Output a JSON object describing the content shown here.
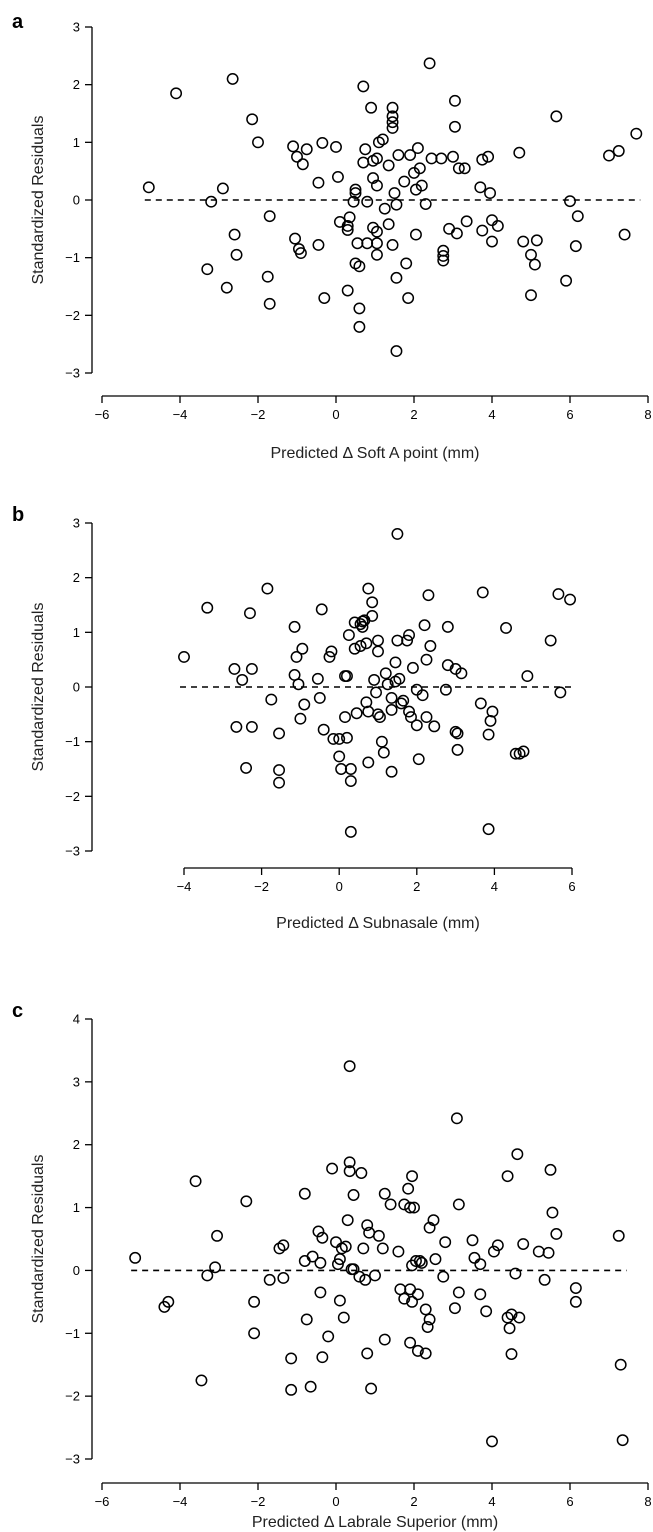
{
  "chart_data": [
    {
      "panel": "a",
      "type": "scatter",
      "xlabel": "Predicted Δ Soft A point (mm)",
      "ylabel": "Standardized Residuals",
      "xlim": [
        -6,
        8
      ],
      "ylim": [
        -3,
        3
      ],
      "xticks": [
        "−6",
        "−4",
        "−2",
        "0",
        "2",
        "4",
        "6",
        "8"
      ],
      "yticks": [
        "−3",
        "−2",
        "−1",
        "0",
        "1",
        "2",
        "3"
      ],
      "reference_y": 0,
      "points": [
        [
          -4.8,
          0.22
        ],
        [
          -4.1,
          1.85
        ],
        [
          -3.2,
          -0.03
        ],
        [
          -3.3,
          -1.2
        ],
        [
          -2.9,
          0.2
        ],
        [
          -2.8,
          -1.52
        ],
        [
          -2.65,
          2.1
        ],
        [
          -2.6,
          -0.6
        ],
        [
          -2.55,
          -0.95
        ],
        [
          -2.15,
          1.4
        ],
        [
          -2.0,
          1.0
        ],
        [
          -1.7,
          -0.28
        ],
        [
          -1.75,
          -1.33
        ],
        [
          -1.7,
          -1.8
        ],
        [
          -1.1,
          0.93
        ],
        [
          -1.0,
          0.75
        ],
        [
          -0.85,
          0.62
        ],
        [
          -0.75,
          0.88
        ],
        [
          -1.05,
          -0.67
        ],
        [
          -0.95,
          -0.85
        ],
        [
          -0.9,
          -0.92
        ],
        [
          -0.35,
          0.99
        ],
        [
          -0.45,
          0.3
        ],
        [
          -0.45,
          -0.78
        ],
        [
          -0.3,
          -1.7
        ],
        [
          0.05,
          0.4
        ],
        [
          0.0,
          0.92
        ],
        [
          0.1,
          -0.38
        ],
        [
          0.3,
          -0.45
        ],
        [
          0.3,
          -0.52
        ],
        [
          0.35,
          -0.3
        ],
        [
          0.3,
          -1.57
        ],
        [
          0.45,
          -0.03
        ],
        [
          0.5,
          0.12
        ],
        [
          0.5,
          0.18
        ],
        [
          0.55,
          -0.75
        ],
        [
          0.5,
          -1.1
        ],
        [
          0.6,
          -1.15
        ],
        [
          0.6,
          -1.88
        ],
        [
          0.6,
          -2.2
        ],
        [
          0.7,
          1.97
        ],
        [
          0.75,
          0.88
        ],
        [
          0.7,
          0.65
        ],
        [
          0.8,
          -0.03
        ],
        [
          0.8,
          -0.75
        ],
        [
          0.9,
          1.6
        ],
        [
          0.95,
          0.38
        ],
        [
          0.95,
          0.68
        ],
        [
          0.95,
          -0.48
        ],
        [
          1.05,
          0.72
        ],
        [
          1.05,
          0.25
        ],
        [
          1.05,
          -0.55
        ],
        [
          1.05,
          -0.75
        ],
        [
          1.05,
          -0.95
        ],
        [
          1.1,
          1.0
        ],
        [
          1.2,
          1.05
        ],
        [
          1.25,
          -0.15
        ],
        [
          1.35,
          0.6
        ],
        [
          1.35,
          -0.42
        ],
        [
          1.45,
          1.6
        ],
        [
          1.45,
          1.45
        ],
        [
          1.45,
          1.35
        ],
        [
          1.45,
          1.25
        ],
        [
          1.5,
          0.12
        ],
        [
          1.45,
          -0.78
        ],
        [
          1.55,
          -0.08
        ],
        [
          1.6,
          0.78
        ],
        [
          1.55,
          -1.35
        ],
        [
          1.55,
          -2.62
        ],
        [
          1.75,
          0.32
        ],
        [
          1.8,
          -1.1
        ],
        [
          1.85,
          -1.7
        ],
        [
          1.9,
          0.78
        ],
        [
          2.0,
          0.47
        ],
        [
          2.05,
          0.18
        ],
        [
          2.05,
          -0.6
        ],
        [
          2.1,
          0.9
        ],
        [
          2.15,
          0.55
        ],
        [
          2.2,
          0.25
        ],
        [
          2.3,
          -0.07
        ],
        [
          2.4,
          2.37
        ],
        [
          2.45,
          0.72
        ],
        [
          2.7,
          0.72
        ],
        [
          2.75,
          -0.88
        ],
        [
          2.75,
          -0.97
        ],
        [
          2.75,
          -1.05
        ],
        [
          2.9,
          -0.5
        ],
        [
          3.0,
          0.75
        ],
        [
          3.05,
          1.27
        ],
        [
          3.05,
          1.72
        ],
        [
          3.1,
          -0.58
        ],
        [
          3.15,
          0.55
        ],
        [
          3.35,
          -0.37
        ],
        [
          3.3,
          0.55
        ],
        [
          3.7,
          0.22
        ],
        [
          3.75,
          0.7
        ],
        [
          3.75,
          -0.53
        ],
        [
          3.9,
          0.75
        ],
        [
          3.95,
          0.12
        ],
        [
          4.0,
          -0.35
        ],
        [
          4.0,
          -0.72
        ],
        [
          4.15,
          -0.45
        ],
        [
          4.7,
          0.82
        ],
        [
          4.8,
          -0.72
        ],
        [
          5.0,
          -0.95
        ],
        [
          5.0,
          -1.65
        ],
        [
          5.1,
          -1.12
        ],
        [
          5.15,
          -0.7
        ],
        [
          5.65,
          1.45
        ],
        [
          5.9,
          -1.4
        ],
        [
          6.0,
          -0.02
        ],
        [
          6.15,
          -0.8
        ],
        [
          6.2,
          -0.28
        ],
        [
          7.0,
          0.77
        ],
        [
          7.25,
          0.85
        ],
        [
          7.4,
          -0.6
        ],
        [
          7.7,
          1.15
        ]
      ]
    },
    {
      "panel": "b",
      "type": "scatter",
      "xlabel": "Predicted Δ Subnasale (mm)",
      "ylabel": "Standardized Residuals",
      "xlim": [
        -4,
        6
      ],
      "ylim": [
        -3,
        3
      ],
      "xticks": [
        "−4",
        "−2",
        "0",
        "2",
        "4",
        "6"
      ],
      "yticks": [
        "−3",
        "−2",
        "−1",
        "0",
        "1",
        "2",
        "3"
      ],
      "reference_y": 0,
      "points": [
        [
          -4.0,
          0.55
        ],
        [
          -3.4,
          1.45
        ],
        [
          -2.7,
          0.33
        ],
        [
          -2.65,
          -0.73
        ],
        [
          -2.5,
          0.13
        ],
        [
          -2.4,
          -1.48
        ],
        [
          -2.3,
          1.35
        ],
        [
          -2.25,
          0.33
        ],
        [
          -2.25,
          -0.73
        ],
        [
          -1.85,
          1.8
        ],
        [
          -1.75,
          -0.23
        ],
        [
          -1.55,
          -0.85
        ],
        [
          -1.55,
          -1.52
        ],
        [
          -1.55,
          -1.75
        ],
        [
          -1.15,
          1.1
        ],
        [
          -1.15,
          0.22
        ],
        [
          -1.1,
          0.55
        ],
        [
          -1.05,
          0.05
        ],
        [
          -0.95,
          0.7
        ],
        [
          -0.9,
          -0.32
        ],
        [
          -1.0,
          -0.58
        ],
        [
          -0.55,
          0.15
        ],
        [
          -0.5,
          -0.2
        ],
        [
          -0.45,
          1.42
        ],
        [
          -0.4,
          -0.78
        ],
        [
          -0.25,
          0.55
        ],
        [
          -0.2,
          0.65
        ],
        [
          -0.15,
          -0.95
        ],
        [
          0.0,
          -0.95
        ],
        [
          0.0,
          -1.27
        ],
        [
          0.05,
          -1.5
        ],
        [
          0.15,
          0.2
        ],
        [
          0.2,
          0.2
        ],
        [
          0.2,
          -0.93
        ],
        [
          0.15,
          -0.55
        ],
        [
          0.25,
          0.95
        ],
        [
          0.3,
          -1.5
        ],
        [
          0.3,
          -1.72
        ],
        [
          0.3,
          -2.65
        ],
        [
          0.4,
          0.7
        ],
        [
          0.4,
          1.18
        ],
        [
          0.45,
          -0.48
        ],
        [
          0.55,
          0.75
        ],
        [
          0.55,
          1.15
        ],
        [
          0.6,
          1.1
        ],
        [
          0.6,
          1.2
        ],
        [
          0.65,
          1.22
        ],
        [
          0.7,
          0.8
        ],
        [
          0.7,
          -0.28
        ],
        [
          0.75,
          1.8
        ],
        [
          0.75,
          -1.38
        ],
        [
          0.75,
          -0.45
        ],
        [
          0.85,
          1.3
        ],
        [
          0.85,
          1.55
        ],
        [
          0.9,
          0.13
        ],
        [
          0.95,
          -0.1
        ],
        [
          1.0,
          0.85
        ],
        [
          1.0,
          0.65
        ],
        [
          1.0,
          -0.5
        ],
        [
          1.05,
          -0.55
        ],
        [
          1.1,
          -1.0
        ],
        [
          1.15,
          -1.2
        ],
        [
          1.2,
          0.25
        ],
        [
          1.25,
          0.05
        ],
        [
          1.35,
          -0.2
        ],
        [
          1.35,
          -0.42
        ],
        [
          1.35,
          -1.55
        ],
        [
          1.45,
          0.45
        ],
        [
          1.45,
          0.1
        ],
        [
          1.5,
          2.8
        ],
        [
          1.5,
          0.85
        ],
        [
          1.55,
          0.15
        ],
        [
          1.6,
          -0.3
        ],
        [
          1.65,
          -0.25
        ],
        [
          1.75,
          0.85
        ],
        [
          1.8,
          0.95
        ],
        [
          1.8,
          -0.45
        ],
        [
          1.85,
          -0.55
        ],
        [
          1.9,
          0.35
        ],
        [
          2.0,
          -0.05
        ],
        [
          2.0,
          -0.7
        ],
        [
          2.05,
          -1.32
        ],
        [
          2.15,
          -0.15
        ],
        [
          2.2,
          1.13
        ],
        [
          2.25,
          0.5
        ],
        [
          2.25,
          -0.55
        ],
        [
          2.3,
          1.68
        ],
        [
          2.35,
          0.75
        ],
        [
          2.45,
          -0.72
        ],
        [
          2.75,
          -0.05
        ],
        [
          2.8,
          0.4
        ],
        [
          2.8,
          1.1
        ],
        [
          3.0,
          0.33
        ],
        [
          3.0,
          -0.82
        ],
        [
          3.05,
          -0.85
        ],
        [
          3.05,
          -1.15
        ],
        [
          3.15,
          0.25
        ],
        [
          3.65,
          -0.3
        ],
        [
          3.7,
          1.73
        ],
        [
          3.85,
          -2.6
        ],
        [
          3.85,
          -0.87
        ],
        [
          3.9,
          -0.62
        ],
        [
          3.95,
          -0.45
        ],
        [
          4.3,
          1.08
        ],
        [
          4.55,
          -1.22
        ],
        [
          4.65,
          -1.22
        ],
        [
          4.75,
          -1.18
        ],
        [
          4.85,
          0.2
        ],
        [
          5.45,
          0.85
        ],
        [
          5.65,
          1.7
        ],
        [
          5.7,
          -0.1
        ],
        [
          5.95,
          1.6
        ]
      ]
    },
    {
      "panel": "c",
      "type": "scatter",
      "xlabel": "Predicted Δ Labrale Superior (mm)",
      "ylabel": "Standardized Residuals",
      "xlim": [
        -6,
        8
      ],
      "ylim": [
        -3,
        4
      ],
      "xticks": [
        "−6",
        "−4",
        "−2",
        "0",
        "2",
        "4",
        "6",
        "8"
      ],
      "yticks": [
        "−3",
        "−2",
        "−1",
        "0",
        "1",
        "2",
        "3",
        "4"
      ],
      "reference_y": 0,
      "points": [
        [
          -5.15,
          0.2
        ],
        [
          -4.4,
          -0.58
        ],
        [
          -4.3,
          -0.5
        ],
        [
          -3.6,
          1.42
        ],
        [
          -3.45,
          -1.75
        ],
        [
          -3.3,
          -0.08
        ],
        [
          -3.1,
          0.05
        ],
        [
          -3.05,
          0.55
        ],
        [
          -2.3,
          1.1
        ],
        [
          -2.1,
          -0.5
        ],
        [
          -2.1,
          -1.0
        ],
        [
          -1.7,
          -0.15
        ],
        [
          -1.45,
          0.35
        ],
        [
          -1.35,
          0.4
        ],
        [
          -1.35,
          -0.12
        ],
        [
          -1.15,
          -1.4
        ],
        [
          -1.15,
          -1.9
        ],
        [
          -0.8,
          1.22
        ],
        [
          -0.8,
          0.15
        ],
        [
          -0.75,
          -0.78
        ],
        [
          -0.6,
          0.22
        ],
        [
          -0.65,
          -1.85
        ],
        [
          -0.45,
          0.62
        ],
        [
          -0.4,
          0.12
        ],
        [
          -0.4,
          -0.35
        ],
        [
          -0.35,
          0.52
        ],
        [
          -0.35,
          -1.38
        ],
        [
          -0.2,
          -1.05
        ],
        [
          -0.1,
          1.62
        ],
        [
          0.0,
          0.45
        ],
        [
          0.05,
          0.1
        ],
        [
          0.1,
          0.18
        ],
        [
          0.1,
          -0.48
        ],
        [
          0.15,
          0.35
        ],
        [
          0.2,
          -0.75
        ],
        [
          0.25,
          0.38
        ],
        [
          0.3,
          0.8
        ],
        [
          0.35,
          1.72
        ],
        [
          0.35,
          1.58
        ],
        [
          0.35,
          3.25
        ],
        [
          0.4,
          0.02
        ],
        [
          0.45,
          0.02
        ],
        [
          0.45,
          1.2
        ],
        [
          0.6,
          -0.1
        ],
        [
          0.65,
          1.55
        ],
        [
          0.7,
          0.35
        ],
        [
          0.75,
          -0.15
        ],
        [
          0.8,
          -1.32
        ],
        [
          0.8,
          0.72
        ],
        [
          0.85,
          0.6
        ],
        [
          0.9,
          -1.88
        ],
        [
          1.0,
          -0.08
        ],
        [
          1.1,
          0.55
        ],
        [
          1.25,
          1.22
        ],
        [
          1.25,
          -1.1
        ],
        [
          1.2,
          0.35
        ],
        [
          1.4,
          1.05
        ],
        [
          1.6,
          0.3
        ],
        [
          1.65,
          -0.3
        ],
        [
          1.75,
          1.05
        ],
        [
          1.75,
          -0.45
        ],
        [
          1.85,
          1.3
        ],
        [
          1.95,
          1.5
        ],
        [
          1.9,
          1.0
        ],
        [
          1.9,
          -1.15
        ],
        [
          1.9,
          -0.3
        ],
        [
          1.95,
          0.08
        ],
        [
          1.95,
          -0.5
        ],
        [
          2.0,
          1.0
        ],
        [
          2.05,
          0.15
        ],
        [
          2.1,
          -0.38
        ],
        [
          2.1,
          -1.28
        ],
        [
          2.15,
          0.15
        ],
        [
          2.2,
          0.12
        ],
        [
          2.3,
          -0.62
        ],
        [
          2.3,
          -1.32
        ],
        [
          2.35,
          -0.9
        ],
        [
          2.4,
          0.68
        ],
        [
          2.4,
          -0.78
        ],
        [
          2.5,
          0.8
        ],
        [
          2.55,
          0.18
        ],
        [
          2.75,
          -0.1
        ],
        [
          2.8,
          0.45
        ],
        [
          3.05,
          -0.6
        ],
        [
          3.1,
          2.42
        ],
        [
          3.15,
          1.05
        ],
        [
          3.15,
          -0.35
        ],
        [
          3.5,
          0.48
        ],
        [
          3.55,
          0.2
        ],
        [
          3.7,
          0.1
        ],
        [
          3.7,
          -0.38
        ],
        [
          3.85,
          -0.65
        ],
        [
          4.0,
          -2.72
        ],
        [
          4.05,
          0.3
        ],
        [
          4.15,
          0.4
        ],
        [
          4.4,
          1.5
        ],
        [
          4.4,
          -0.75
        ],
        [
          4.45,
          -0.92
        ],
        [
          4.5,
          -0.7
        ],
        [
          4.5,
          -1.33
        ],
        [
          4.6,
          -0.05
        ],
        [
          4.65,
          1.85
        ],
        [
          4.7,
          -0.75
        ],
        [
          4.8,
          0.42
        ],
        [
          5.2,
          0.3
        ],
        [
          5.35,
          -0.15
        ],
        [
          5.45,
          0.28
        ],
        [
          5.5,
          1.6
        ],
        [
          5.55,
          0.92
        ],
        [
          5.65,
          0.58
        ],
        [
          6.15,
          -0.28
        ],
        [
          6.15,
          -0.5
        ],
        [
          7.25,
          0.55
        ],
        [
          7.3,
          -1.5
        ],
        [
          7.35,
          -2.7
        ]
      ]
    }
  ]
}
